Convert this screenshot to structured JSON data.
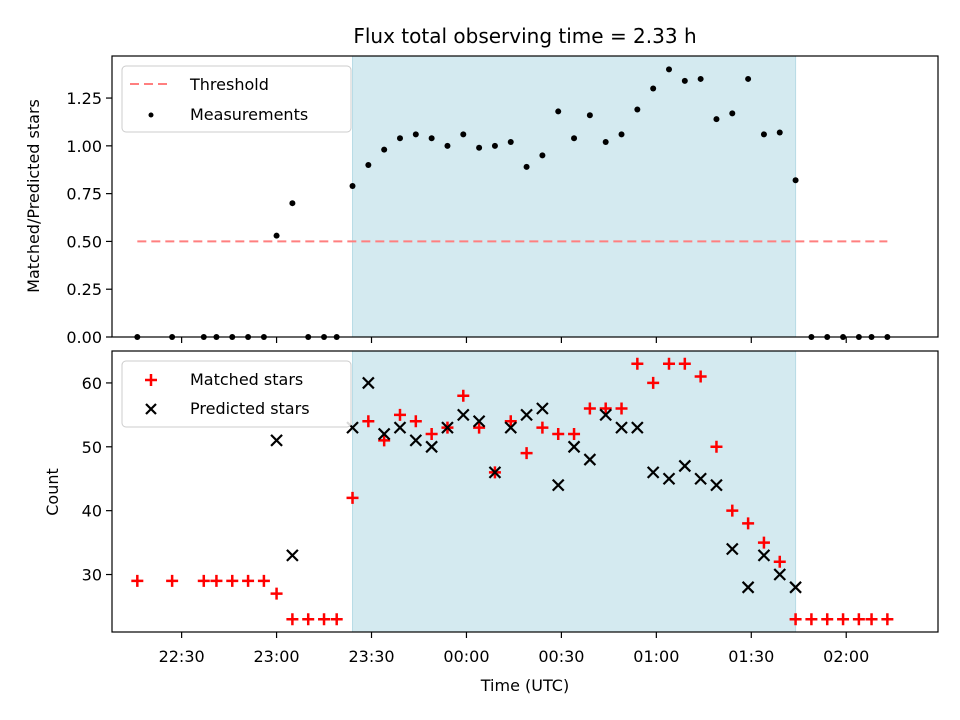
{
  "chart_data": [
    {
      "type": "scatter",
      "title": "Flux total observing time = 2.33 h",
      "xlabel": "",
      "ylabel": "Matched/Predicted stars",
      "xlim": [
        "22:08",
        "02:29"
      ],
      "ylim": [
        0,
        1.47
      ],
      "yticks": [
        "0.00",
        "0.25",
        "0.50",
        "0.75",
        "1.00",
        "1.25"
      ],
      "xticks": [
        "22:30",
        "23:00",
        "23:30",
        "00:00",
        "00:30",
        "01:00",
        "01:30",
        "02:00"
      ],
      "highlight_span": {
        "start": "23:24",
        "end": "01:44",
        "color": "#d4eaf0"
      },
      "threshold": {
        "name": "Threshold",
        "value": 0.5,
        "x_start": "22:16",
        "x_end": "02:13",
        "color": "#ff7f7f"
      },
      "legend": {
        "placement": "top-left",
        "entries": [
          "Threshold",
          "Measurements"
        ]
      },
      "series": [
        {
          "name": "Measurements",
          "color": "#000000",
          "x": [
            "22:16",
            "22:27",
            "22:37",
            "22:41",
            "22:46",
            "22:51",
            "22:56",
            "23:00",
            "23:05",
            "23:10",
            "23:15",
            "23:19",
            "23:24",
            "23:29",
            "23:34",
            "23:39",
            "23:44",
            "23:49",
            "23:54",
            "23:59",
            "00:04",
            "00:09",
            "00:14",
            "00:19",
            "00:24",
            "00:29",
            "00:34",
            "00:39",
            "00:44",
            "00:49",
            "00:54",
            "00:59",
            "01:04",
            "01:09",
            "01:14",
            "01:19",
            "01:24",
            "01:29",
            "01:34",
            "01:39",
            "01:44",
            "01:49",
            "01:54",
            "01:59",
            "02:04",
            "02:08",
            "02:13"
          ],
          "y": [
            0,
            0,
            0,
            0,
            0,
            0,
            0,
            0.53,
            0.7,
            0,
            0,
            0,
            0.79,
            0.9,
            0.98,
            1.04,
            1.06,
            1.04,
            1.0,
            1.06,
            0.99,
            1.0,
            1.02,
            0.89,
            0.95,
            1.18,
            1.04,
            1.16,
            1.02,
            1.06,
            1.19,
            1.3,
            1.4,
            1.34,
            1.35,
            1.14,
            1.17,
            1.35,
            1.06,
            1.07,
            0.82,
            0,
            0,
            0,
            0,
            0,
            0
          ]
        }
      ]
    },
    {
      "type": "scatter",
      "title": "",
      "xlabel": "Time (UTC)",
      "ylabel": "Count",
      "xlim": [
        "22:08",
        "02:29"
      ],
      "ylim": [
        21,
        65
      ],
      "yticks": [
        "30",
        "40",
        "50",
        "60"
      ],
      "xticks": [
        "22:30",
        "23:00",
        "23:30",
        "00:00",
        "00:30",
        "01:00",
        "01:30",
        "02:00"
      ],
      "highlight_span": {
        "start": "23:24",
        "end": "01:44",
        "color": "#d4eaf0"
      },
      "legend": {
        "placement": "top-left",
        "entries": [
          "Matched stars",
          "Predicted stars"
        ]
      },
      "series": [
        {
          "name": "Matched stars",
          "color": "#ff0000",
          "marker": "plus",
          "x": [
            "22:16",
            "22:27",
            "22:37",
            "22:41",
            "22:46",
            "22:51",
            "22:56",
            "23:00",
            "23:05",
            "23:10",
            "23:15",
            "23:19",
            "23:24",
            "23:29",
            "23:34",
            "23:39",
            "23:44",
            "23:49",
            "23:54",
            "23:59",
            "00:04",
            "00:09",
            "00:14",
            "00:19",
            "00:24",
            "00:29",
            "00:34",
            "00:39",
            "00:44",
            "00:49",
            "00:54",
            "00:59",
            "01:04",
            "01:09",
            "01:14",
            "01:19",
            "01:24",
            "01:29",
            "01:34",
            "01:39",
            "01:44",
            "01:49",
            "01:54",
            "01:59",
            "02:04",
            "02:08",
            "02:13"
          ],
          "y": [
            29,
            29,
            29,
            29,
            29,
            29,
            29,
            27,
            23,
            23,
            23,
            23,
            42,
            54,
            51,
            55,
            54,
            52,
            53,
            58,
            53,
            46,
            54,
            49,
            53,
            52,
            52,
            56,
            56,
            56,
            63,
            60,
            63,
            63,
            61,
            50,
            40,
            38,
            35,
            32,
            23,
            23,
            23,
            23,
            23,
            23,
            23
          ]
        },
        {
          "name": "Predicted stars",
          "color": "#000000",
          "marker": "x",
          "x": [
            "23:00",
            "23:05",
            "23:24",
            "23:29",
            "23:34",
            "23:39",
            "23:44",
            "23:49",
            "23:54",
            "23:59",
            "00:04",
            "00:09",
            "00:14",
            "00:19",
            "00:24",
            "00:29",
            "00:34",
            "00:39",
            "00:44",
            "00:49",
            "00:54",
            "00:59",
            "01:04",
            "01:09",
            "01:14",
            "01:19",
            "01:24",
            "01:29",
            "01:34",
            "01:39",
            "01:44"
          ],
          "y": [
            51,
            33,
            53,
            60,
            52,
            53,
            51,
            50,
            53,
            55,
            54,
            46,
            53,
            55,
            56,
            44,
            50,
            48,
            55,
            53,
            53,
            46,
            45,
            47,
            45,
            44,
            34,
            28,
            33,
            30,
            28
          ]
        }
      ]
    }
  ]
}
